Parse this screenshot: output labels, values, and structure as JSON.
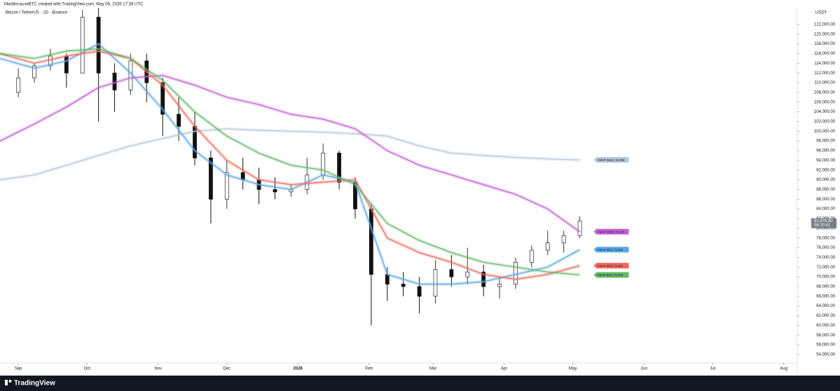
{
  "header": {
    "credit": "MaxBecauseBTC created with TradingView.com, May 06, 2026 17:39 UTC",
    "symbol": "Bitcoin / TetherUS · 1D · Binance",
    "currency": "USDT",
    "brand": "TradingView"
  },
  "chart_data": {
    "type": "candlestick",
    "candles": {
      "x": [
        0,
        7,
        14,
        21,
        28,
        35,
        42,
        49,
        56,
        63,
        70,
        77,
        84,
        91,
        98,
        105,
        112,
        119,
        126,
        133,
        140,
        147,
        154,
        161,
        168,
        175,
        182,
        189,
        196,
        203,
        210,
        217,
        224,
        231,
        238,
        245
      ],
      "open": [
        108000,
        111000,
        113500,
        115500,
        112000,
        123500,
        112000,
        108500,
        114500,
        110000,
        103500,
        101000,
        94500,
        86000,
        91500,
        90000,
        88000,
        87500,
        88000,
        91000,
        95500,
        89500,
        84000,
        70500,
        68500,
        68000,
        66000,
        71500,
        70000,
        71000,
        68000,
        68500,
        73000,
        75500,
        77000,
        78500
      ],
      "high": [
        113000,
        114000,
        117000,
        116000,
        125000,
        125400,
        114000,
        116000,
        116000,
        111000,
        107000,
        104000,
        96000,
        94000,
        94500,
        92500,
        90500,
        89000,
        94500,
        97500,
        96000,
        90500,
        85000,
        72000,
        71000,
        70000,
        73500,
        74500,
        76000,
        72500,
        70000,
        74000,
        76500,
        79500,
        79500,
        82500
      ],
      "low": [
        107000,
        110000,
        112500,
        109000,
        112000,
        102000,
        104000,
        107500,
        106000,
        99000,
        98000,
        93000,
        81000,
        84000,
        88000,
        85000,
        86000,
        86500,
        87000,
        90000,
        88000,
        82000,
        60000,
        65000,
        66000,
        62500,
        64500,
        68000,
        68500,
        66000,
        65500,
        67500,
        72000,
        74500,
        75000,
        78000
      ],
      "close": [
        111000,
        113500,
        115500,
        112000,
        123500,
        112000,
        108500,
        114500,
        110000,
        103500,
        101000,
        94500,
        86000,
        91500,
        90000,
        88000,
        87500,
        88000,
        91000,
        95500,
        89500,
        84000,
        70500,
        68500,
        68000,
        66000,
        71500,
        70000,
        71000,
        68000,
        68500,
        73000,
        75500,
        77000,
        78500,
        81500
      ],
      "up_color": "#3a3a3a",
      "down_color": "#111111"
    },
    "line_x": [
      -8,
      7,
      21,
      35,
      49,
      63,
      77,
      91,
      105,
      119,
      133,
      147,
      161,
      175,
      189,
      203,
      217,
      231,
      245
    ],
    "series": [
      {
        "name": "VWAP 365d | 94,095",
        "color": "#b9c6d6",
        "values": [
          90000,
          91000,
          93000,
          95000,
          97000,
          98500,
          100000,
          100500,
          100200,
          100000,
          99800,
          99500,
          99000,
          97000,
          95500,
          95000,
          94600,
          94300,
          94100
        ]
      },
      {
        "name": "VWAP 180d | 79,225",
        "color": "#c55fd6",
        "values": [
          98000,
          101500,
          105000,
          109000,
          111000,
          111500,
          109500,
          107000,
          105500,
          103500,
          102500,
          100500,
          96000,
          93000,
          91000,
          89000,
          87000,
          84000,
          79300
        ]
      },
      {
        "name": "VWAP 30d | 75,590",
        "color": "#5aa9e6",
        "values": [
          115000,
          113000,
          114500,
          118000,
          112000,
          104500,
          96000,
          91000,
          89000,
          88000,
          91000,
          89500,
          70500,
          68500,
          68500,
          69000,
          70500,
          72000,
          75600
        ]
      },
      {
        "name": "VWAP 60d | 72,302",
        "color": "#ef6b5e",
        "values": [
          116000,
          114000,
          115500,
          116500,
          115000,
          109500,
          101000,
          94000,
          90000,
          89000,
          89500,
          90000,
          78000,
          75000,
          73000,
          70500,
          69500,
          70500,
          72300
        ]
      },
      {
        "name": "VWAP 90d | 70,378",
        "color": "#66b96a",
        "values": [
          116000,
          115000,
          116500,
          117000,
          115000,
          110500,
          104000,
          99000,
          95500,
          93000,
          92000,
          89000,
          81000,
          77500,
          75000,
          73000,
          72000,
          71000,
          70400
        ]
      }
    ],
    "last_price": {
      "value": 81478.8,
      "label": "81,478.80"
    },
    "countdown": "06:20:41",
    "xlim": [
      -8,
      339
    ],
    "xticks": [
      {
        "value": 0,
        "label": "Sep"
      },
      {
        "value": 30,
        "label": "Oct"
      },
      {
        "value": 61,
        "label": "Nov"
      },
      {
        "value": 91,
        "label": "Dec"
      },
      {
        "value": 122,
        "label": "2026"
      },
      {
        "value": 153,
        "label": "Feb"
      },
      {
        "value": 181,
        "label": "Mar"
      },
      {
        "value": 212,
        "label": "Apr"
      },
      {
        "value": 242,
        "label": "May"
      },
      {
        "value": 273,
        "label": "Jun"
      },
      {
        "value": 303,
        "label": "Jul"
      },
      {
        "value": 334,
        "label": "Aug"
      }
    ],
    "ylim": [
      52400,
      125600
    ],
    "yticks": [
      {
        "value": 54000,
        "label": "54,000.00"
      },
      {
        "value": 56000,
        "label": "56,000.00"
      },
      {
        "value": 58000,
        "label": "58,000.00"
      },
      {
        "value": 60000,
        "label": "60,000.00"
      },
      {
        "value": 62000,
        "label": "62,000.00"
      },
      {
        "value": 64000,
        "label": "64,000.00"
      },
      {
        "value": 66000,
        "label": "66,000.00"
      },
      {
        "value": 68000,
        "label": "68,000.00"
      },
      {
        "value": 70000,
        "label": "70,000.00"
      },
      {
        "value": 72000,
        "label": "72,000.00"
      },
      {
        "value": 74000,
        "label": "74,000.00"
      },
      {
        "value": 76000,
        "label": "76,000.00"
      },
      {
        "value": 78000,
        "label": "78,000.00"
      },
      {
        "value": 80000,
        "label": "80,000.00"
      },
      {
        "value": 82000,
        "label": "82,000.00"
      },
      {
        "value": 84000,
        "label": "84,000.00"
      },
      {
        "value": 86000,
        "label": "86,000.00"
      },
      {
        "value": 88000,
        "label": "88,000.00"
      },
      {
        "value": 90000,
        "label": "90,000.00"
      },
      {
        "value": 92000,
        "label": "92,000.00"
      },
      {
        "value": 94000,
        "label": "94,000.00"
      },
      {
        "value": 96000,
        "label": "96,000.00"
      },
      {
        "value": 98000,
        "label": "98,000.00"
      },
      {
        "value": 100000,
        "label": "100,000.00"
      },
      {
        "value": 102000,
        "label": "102,000.00"
      },
      {
        "value": 104000,
        "label": "104,000.00"
      },
      {
        "value": 106000,
        "label": "106,000.00"
      },
      {
        "value": 108000,
        "label": "108,000.00"
      },
      {
        "value": 110000,
        "label": "110,000.00"
      },
      {
        "value": 112000,
        "label": "112,000.00"
      },
      {
        "value": 114000,
        "label": "114,000.00"
      },
      {
        "value": 116000,
        "label": "116,000.00"
      },
      {
        "value": 118000,
        "label": "118,000.00"
      },
      {
        "value": 120000,
        "label": "120,000.00"
      },
      {
        "value": 122000,
        "label": "122,000.00"
      }
    ],
    "grid": false
  }
}
